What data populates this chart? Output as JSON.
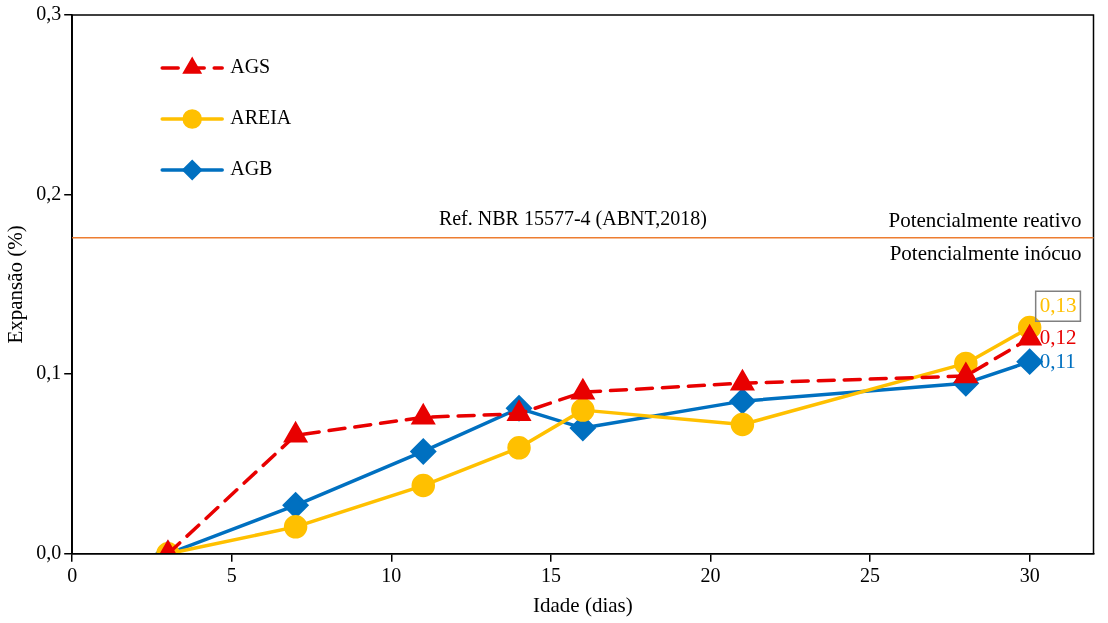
{
  "chart_data": {
    "type": "line",
    "xlabel": "Idade (dias)",
    "ylabel": "Expansão (%)",
    "x": [
      3,
      7,
      11,
      14,
      16,
      21,
      28,
      30
    ],
    "series": [
      {
        "name": "AGS",
        "color": "#e80000",
        "marker": "triangle",
        "line_style": "dashed",
        "values": [
          0,
          0.066,
          0.076,
          0.078,
          0.09,
          0.095,
          0.099,
          0.12
        ],
        "value_labels": [
          null,
          null,
          null,
          null,
          null,
          null,
          null,
          "0,12"
        ]
      },
      {
        "name": "AREIA",
        "color": "#ffc000",
        "marker": "circle",
        "line_style": "solid",
        "values": [
          0,
          0.015,
          0.038,
          0.059,
          0.08,
          0.072,
          0.106,
          0.126
        ],
        "value_labels": [
          null,
          null,
          null,
          null,
          null,
          null,
          null,
          "0,13"
        ]
      },
      {
        "name": "AGB",
        "color": "#0070c0",
        "marker": "diamond",
        "line_style": "solid",
        "values": [
          0,
          0.027,
          0.057,
          0.081,
          0.07,
          0.085,
          0.095,
          0.107
        ],
        "value_labels": [
          null,
          null,
          null,
          null,
          null,
          null,
          null,
          "0,11"
        ]
      }
    ],
    "xlim": [
      0,
      32
    ],
    "xticks": [
      0,
      5,
      10,
      15,
      20,
      25,
      30
    ],
    "ylim": [
      0,
      0.3
    ],
    "yticks": [
      {
        "value": 0,
        "label": "0,0"
      },
      {
        "value": 0.1,
        "label": "0,1"
      },
      {
        "value": 0.2,
        "label": "0,2"
      },
      {
        "value": 0.3,
        "label": "0,3"
      }
    ],
    "ref_lines": [
      {
        "axis": "y",
        "value": 0.176,
        "label": "Ref. NBR 15577-4 (ABNT,2018)",
        "color": "#ed7d31"
      }
    ],
    "annotations": [
      "Potencialmente reativo",
      "Potencialmente inócuo"
    ],
    "grid": false,
    "legend": "top left"
  }
}
